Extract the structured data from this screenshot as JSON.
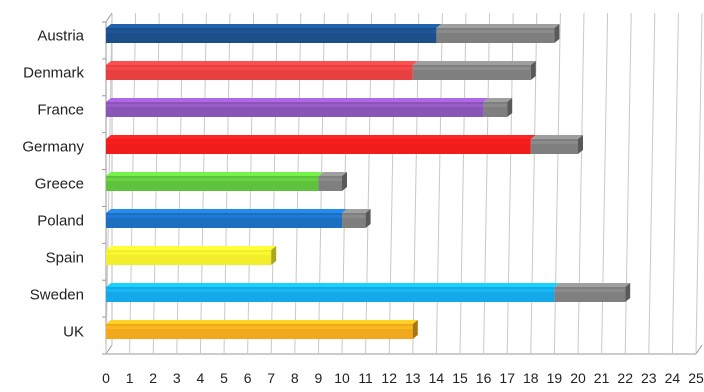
{
  "chart_data": {
    "type": "bar",
    "orientation": "horizontal",
    "stacked": true,
    "categories": [
      "Austria",
      "Denmark",
      "France",
      "Germany",
      "Greece",
      "Poland",
      "Spain",
      "Sweden",
      "UK"
    ],
    "series": [
      {
        "values": [
          14.0,
          13.0,
          16.0,
          18.0,
          9.0,
          10.0,
          7.0,
          19.0,
          13.0
        ],
        "colors": [
          "#1b4f8a",
          "#e84040",
          "#8b55b8",
          "#f01c1c",
          "#5ec23c",
          "#1d6fc0",
          "#f2ee2c",
          "#14a8e8",
          "#f2a81c"
        ]
      },
      {
        "values": [
          5.0,
          5.0,
          1.0,
          2.0,
          1.0,
          1.0,
          0.0,
          3.0,
          0.0
        ],
        "color": "#7f7f7f"
      }
    ],
    "xticks": [
      "0",
      "1",
      "2",
      "3",
      "4",
      "5",
      "6",
      "7",
      "8",
      "9",
      "10",
      "11",
      "12",
      "13",
      "14",
      "15",
      "16",
      "17",
      "18",
      "19",
      "20",
      "21",
      "22",
      "23",
      "24",
      "25"
    ],
    "xlim": [
      0,
      25
    ],
    "grid": true,
    "style": "3d"
  }
}
